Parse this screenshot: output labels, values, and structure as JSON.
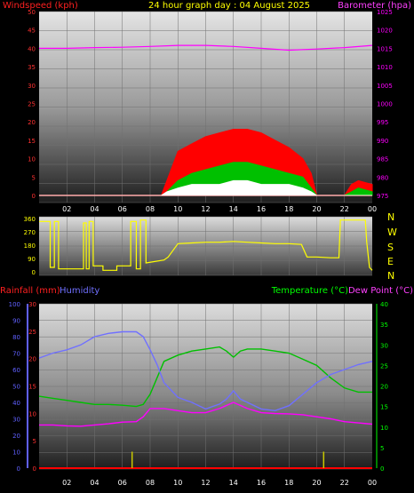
{
  "header": {
    "graph_title": "24 hour graph day : 04 August 2025",
    "wind_title": "Windspeed (kph)",
    "baro_title": "Barometer (hpa)"
  },
  "compass": [
    "N",
    "W",
    "S",
    "E",
    "N"
  ],
  "temp_panel": {
    "rain_label": "Rainfall (mm)",
    "humidity_label": "Humidity",
    "temp_label": "Temperature (°C)",
    "dew_label": "Dew Point (°C)"
  },
  "colors": {
    "windspeed": "#ff0000",
    "wind_avg": "#00c000",
    "wind_low": "#ffffff",
    "barometer": "#ff00ff",
    "direction": "#ffff00",
    "humidity": "#7070ff",
    "temperature": "#00c000",
    "dewpoint": "#ff00ff",
    "rainfall": "#ff0000",
    "rain_rate": "#c8c800",
    "wind_axis_text": "#ff3030",
    "rain_axis_text": "#ff3030",
    "humidity_axis_text": "#6060ff",
    "temp_axis_text": "#00ff00"
  },
  "chart_data": [
    {
      "id": "wind_baro",
      "type": "line",
      "title": "24 hour graph day : 04 August 2025",
      "x_ticks": [
        "02",
        "04",
        "06",
        "08",
        "10",
        "12",
        "14",
        "16",
        "18",
        "20",
        "22",
        "00"
      ],
      "y_left": {
        "label": "Windspeed (kph)",
        "range": [
          0,
          50
        ],
        "ticks": [
          0,
          5,
          10,
          15,
          20,
          25,
          30,
          35,
          40,
          45,
          50
        ]
      },
      "y_right": {
        "label": "Barometer (hpa)",
        "range": [
          975,
          1025
        ],
        "ticks": [
          975,
          980,
          985,
          990,
          995,
          1000,
          1005,
          1010,
          1015,
          1020,
          1025
        ]
      },
      "series": [
        {
          "name": "Barometer",
          "axis": "right",
          "x": [
            0,
            2,
            4,
            6,
            8,
            10,
            12,
            14,
            16,
            18,
            20,
            22,
            24
          ],
          "y": [
            1015,
            1015,
            1015.2,
            1015.3,
            1015.5,
            1015.8,
            1015.8,
            1015.5,
            1015,
            1014.5,
            1014.8,
            1015.2,
            1015.8
          ]
        },
        {
          "name": "Windspeed",
          "axis": "left",
          "x": [
            0,
            8.8,
            9.2,
            10,
            11,
            12,
            13,
            14,
            15,
            16,
            17,
            18,
            19,
            19.6,
            20,
            21,
            22,
            22.5,
            23,
            24
          ],
          "y": [
            0,
            0,
            4,
            12,
            14,
            16,
            17,
            18,
            18,
            17,
            15,
            13,
            10,
            6,
            0,
            0,
            0,
            3,
            4,
            3
          ]
        },
        {
          "name": "Wind average",
          "axis": "left",
          "x": [
            0,
            8.8,
            9.2,
            10,
            11,
            12,
            13,
            14,
            15,
            16,
            17,
            18,
            19,
            19.6,
            20,
            22,
            22.5,
            23,
            24
          ],
          "y": [
            0,
            0,
            1,
            4,
            6,
            7,
            8,
            9,
            9,
            8,
            7,
            6,
            5,
            2,
            0,
            0,
            1,
            2,
            1
          ]
        },
        {
          "name": "Wind low",
          "axis": "left",
          "x": [
            0,
            8.8,
            9.2,
            10,
            11,
            12,
            13,
            14,
            15,
            16,
            17,
            18,
            19,
            19.6,
            20,
            24
          ],
          "y": [
            0,
            0,
            1,
            2,
            3,
            3,
            3,
            4,
            4,
            3,
            3,
            3,
            2,
            1,
            0,
            0
          ]
        }
      ]
    },
    {
      "id": "wind_direction",
      "type": "line",
      "y_left": {
        "range": [
          0,
          360
        ],
        "ticks": [
          0,
          90,
          180,
          270,
          360
        ]
      },
      "y_right_labels": [
        "N",
        "W",
        "S",
        "E",
        "N"
      ],
      "series": [
        {
          "name": "Direction",
          "x": [
            0,
            0.8,
            0.8,
            1.1,
            1.1,
            1.4,
            1.4,
            3.2,
            3.2,
            3.4,
            3.4,
            3.6,
            3.6,
            3.9,
            3.9,
            4.6,
            4.6,
            5.6,
            5.6,
            6.6,
            6.6,
            7.0,
            7.0,
            7.3,
            7.3,
            7.7,
            7.7,
            9.0,
            9.3,
            10,
            11,
            12,
            13,
            14,
            15,
            16,
            17,
            18,
            18.9,
            19.3,
            20,
            21,
            21.6,
            21.7,
            21.7,
            23.5,
            23.6,
            23.8,
            24
          ],
          "y": [
            340,
            340,
            30,
            30,
            340,
            340,
            20,
            20,
            330,
            330,
            20,
            20,
            340,
            340,
            40,
            40,
            10,
            10,
            40,
            40,
            340,
            340,
            20,
            20,
            350,
            350,
            60,
            80,
            100,
            190,
            195,
            200,
            200,
            205,
            200,
            195,
            190,
            190,
            185,
            100,
            100,
            95,
            95,
            340,
            350,
            350,
            200,
            30,
            10
          ]
        }
      ]
    },
    {
      "id": "temp_humidity_rain",
      "type": "line",
      "x_ticks": [
        "02",
        "04",
        "06",
        "08",
        "10",
        "12",
        "14",
        "16",
        "18",
        "20",
        "22",
        "00"
      ],
      "y_left_rain": {
        "label": "Rainfall (mm)",
        "range": [
          0,
          30
        ],
        "ticks": [
          0,
          5,
          10,
          15,
          20,
          25,
          30
        ]
      },
      "y_left_humidity": {
        "label": "Humidity",
        "range": [
          0,
          100
        ],
        "ticks": [
          0,
          10,
          20,
          30,
          40,
          50,
          60,
          70,
          80,
          90,
          100
        ]
      },
      "y_right": {
        "label": "Temperature (°C) / Dew Point (°C)",
        "range": [
          0,
          40
        ],
        "ticks": [
          0,
          5,
          10,
          15,
          20,
          25,
          30,
          35,
          40
        ]
      },
      "series": [
        {
          "name": "Humidity",
          "axis": "humidity",
          "x": [
            0,
            1,
            2,
            3,
            4,
            5,
            6,
            7,
            7.5,
            8,
            8.5,
            9,
            10,
            11,
            12,
            13,
            13.5,
            14,
            14.5,
            15,
            16,
            17,
            18,
            19,
            20,
            21,
            22,
            23,
            24
          ],
          "y": [
            67,
            70,
            72,
            75,
            80,
            82,
            83,
            83,
            80,
            72,
            63,
            52,
            43,
            40,
            36,
            39,
            42,
            47,
            42,
            40,
            36,
            35,
            38,
            45,
            52,
            57,
            60,
            63,
            65
          ]
        },
        {
          "name": "Temperature",
          "axis": "temp",
          "x": [
            0,
            1,
            2,
            3,
            4,
            5,
            6,
            7,
            7.5,
            8,
            8.5,
            9,
            10,
            11,
            12,
            13,
            13.5,
            14,
            14.5,
            15,
            16,
            17,
            18,
            19,
            20,
            21,
            22,
            23,
            24
          ],
          "y": [
            17.5,
            17,
            16.5,
            16,
            15.5,
            15.5,
            15.3,
            15,
            15.5,
            18,
            22,
            26,
            27.5,
            28.5,
            29,
            29.5,
            28.5,
            27,
            28.5,
            29,
            29,
            28.5,
            28,
            26.5,
            25,
            22,
            19.5,
            18.5,
            18.5
          ]
        },
        {
          "name": "Dew Point",
          "axis": "temp",
          "x": [
            0,
            1,
            2,
            3,
            4,
            5,
            6,
            7,
            7.5,
            8,
            9,
            10,
            11,
            12,
            13,
            14,
            15,
            16,
            17,
            18,
            19,
            20,
            21,
            22,
            23,
            24
          ],
          "y": [
            10.5,
            10.5,
            10.3,
            10.2,
            10.5,
            10.8,
            11.2,
            11.3,
            12.5,
            14.5,
            14.5,
            14,
            13.5,
            13.5,
            14.5,
            16,
            14.5,
            13.5,
            13.3,
            13.2,
            13,
            12.5,
            12,
            11.3,
            11,
            10.7
          ]
        },
        {
          "name": "Rainfall",
          "axis": "rain",
          "x": [
            0,
            24
          ],
          "y": [
            0,
            0
          ]
        }
      ],
      "rain_rate_marks": {
        "x": [
          6.7,
          20.5
        ],
        "y": [
          3,
          3
        ]
      }
    }
  ]
}
